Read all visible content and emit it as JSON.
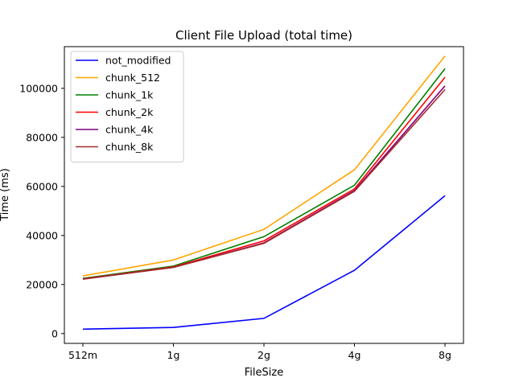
{
  "chart_data": {
    "type": "line",
    "title": "Client File Upload (total time)",
    "xlabel": "FileSize",
    "ylabel": "Time (ms)",
    "categories": [
      "512m",
      "1g",
      "2g",
      "4g",
      "8g"
    ],
    "ylim": [
      -4000,
      117000
    ],
    "yticks": [
      0,
      20000,
      40000,
      60000,
      80000,
      100000
    ],
    "ytick_labels": [
      "0",
      "20000",
      "40000",
      "60000",
      "80000",
      "100000"
    ],
    "grid": false,
    "legend_position": "upper-left",
    "series": [
      {
        "name": "not_modified",
        "color": "#0000ff",
        "values": [
          1800,
          2500,
          6200,
          25800,
          56200
        ]
      },
      {
        "name": "chunk_512",
        "color": "#ffa500",
        "values": [
          23500,
          30000,
          42500,
          66800,
          113200
        ]
      },
      {
        "name": "chunk_1k",
        "color": "#008000",
        "values": [
          22500,
          27500,
          39500,
          60500,
          108000
        ]
      },
      {
        "name": "chunk_2k",
        "color": "#ff0000",
        "values": [
          22300,
          27200,
          37800,
          59000,
          104500
        ]
      },
      {
        "name": "chunk_4k",
        "color": "#800080",
        "values": [
          22200,
          27000,
          37000,
          58300,
          101000
        ]
      },
      {
        "name": "chunk_8k",
        "color": "#a52a2a",
        "values": [
          22200,
          27000,
          36800,
          58000,
          99500
        ]
      }
    ]
  }
}
